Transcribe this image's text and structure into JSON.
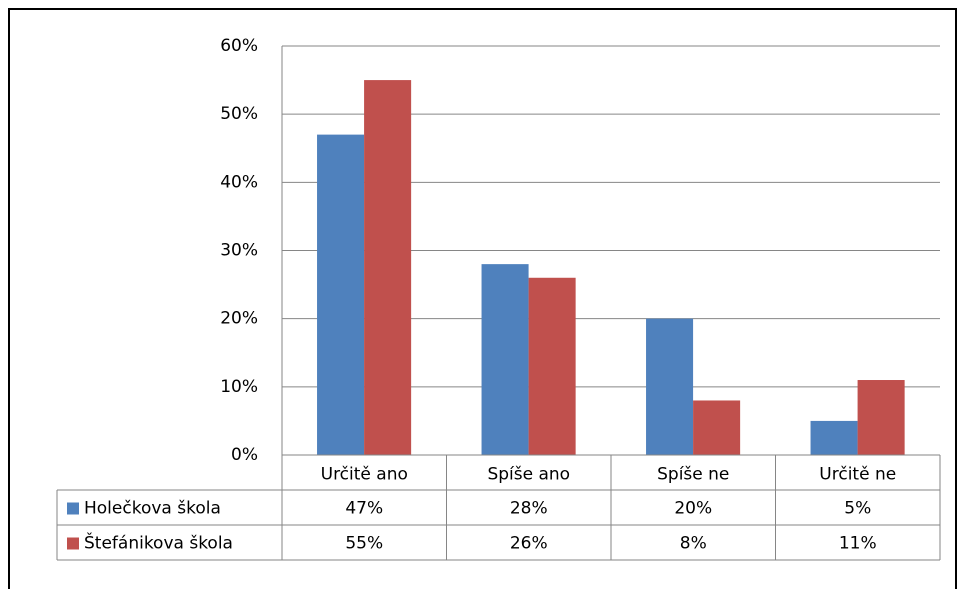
{
  "chart_data": {
    "type": "bar",
    "categories": [
      "Určitě ano",
      "Spíše ano",
      "Spíše ne",
      "Určitě ne"
    ],
    "series": [
      {
        "name": "Holečkova škola",
        "color": "#4f81bd",
        "values": [
          47,
          28,
          20,
          5
        ],
        "value_labels": [
          "47%",
          "28%",
          "20%",
          "5%"
        ]
      },
      {
        "name": "Štefánikova škola",
        "color": "#c0504d",
        "values": [
          55,
          26,
          8,
          11
        ],
        "value_labels": [
          "55%",
          "26%",
          "8%",
          "11%"
        ]
      }
    ],
    "ylim": [
      0,
      60
    ],
    "yticks": [
      {
        "value": 0,
        "label": "0%"
      },
      {
        "value": 10,
        "label": "10%"
      },
      {
        "value": 20,
        "label": "20%"
      },
      {
        "value": 30,
        "label": "30%"
      },
      {
        "value": 40,
        "label": "40%"
      },
      {
        "value": 50,
        "label": "50%"
      },
      {
        "value": 60,
        "label": "60%"
      }
    ],
    "grid": true,
    "data_table": true
  }
}
